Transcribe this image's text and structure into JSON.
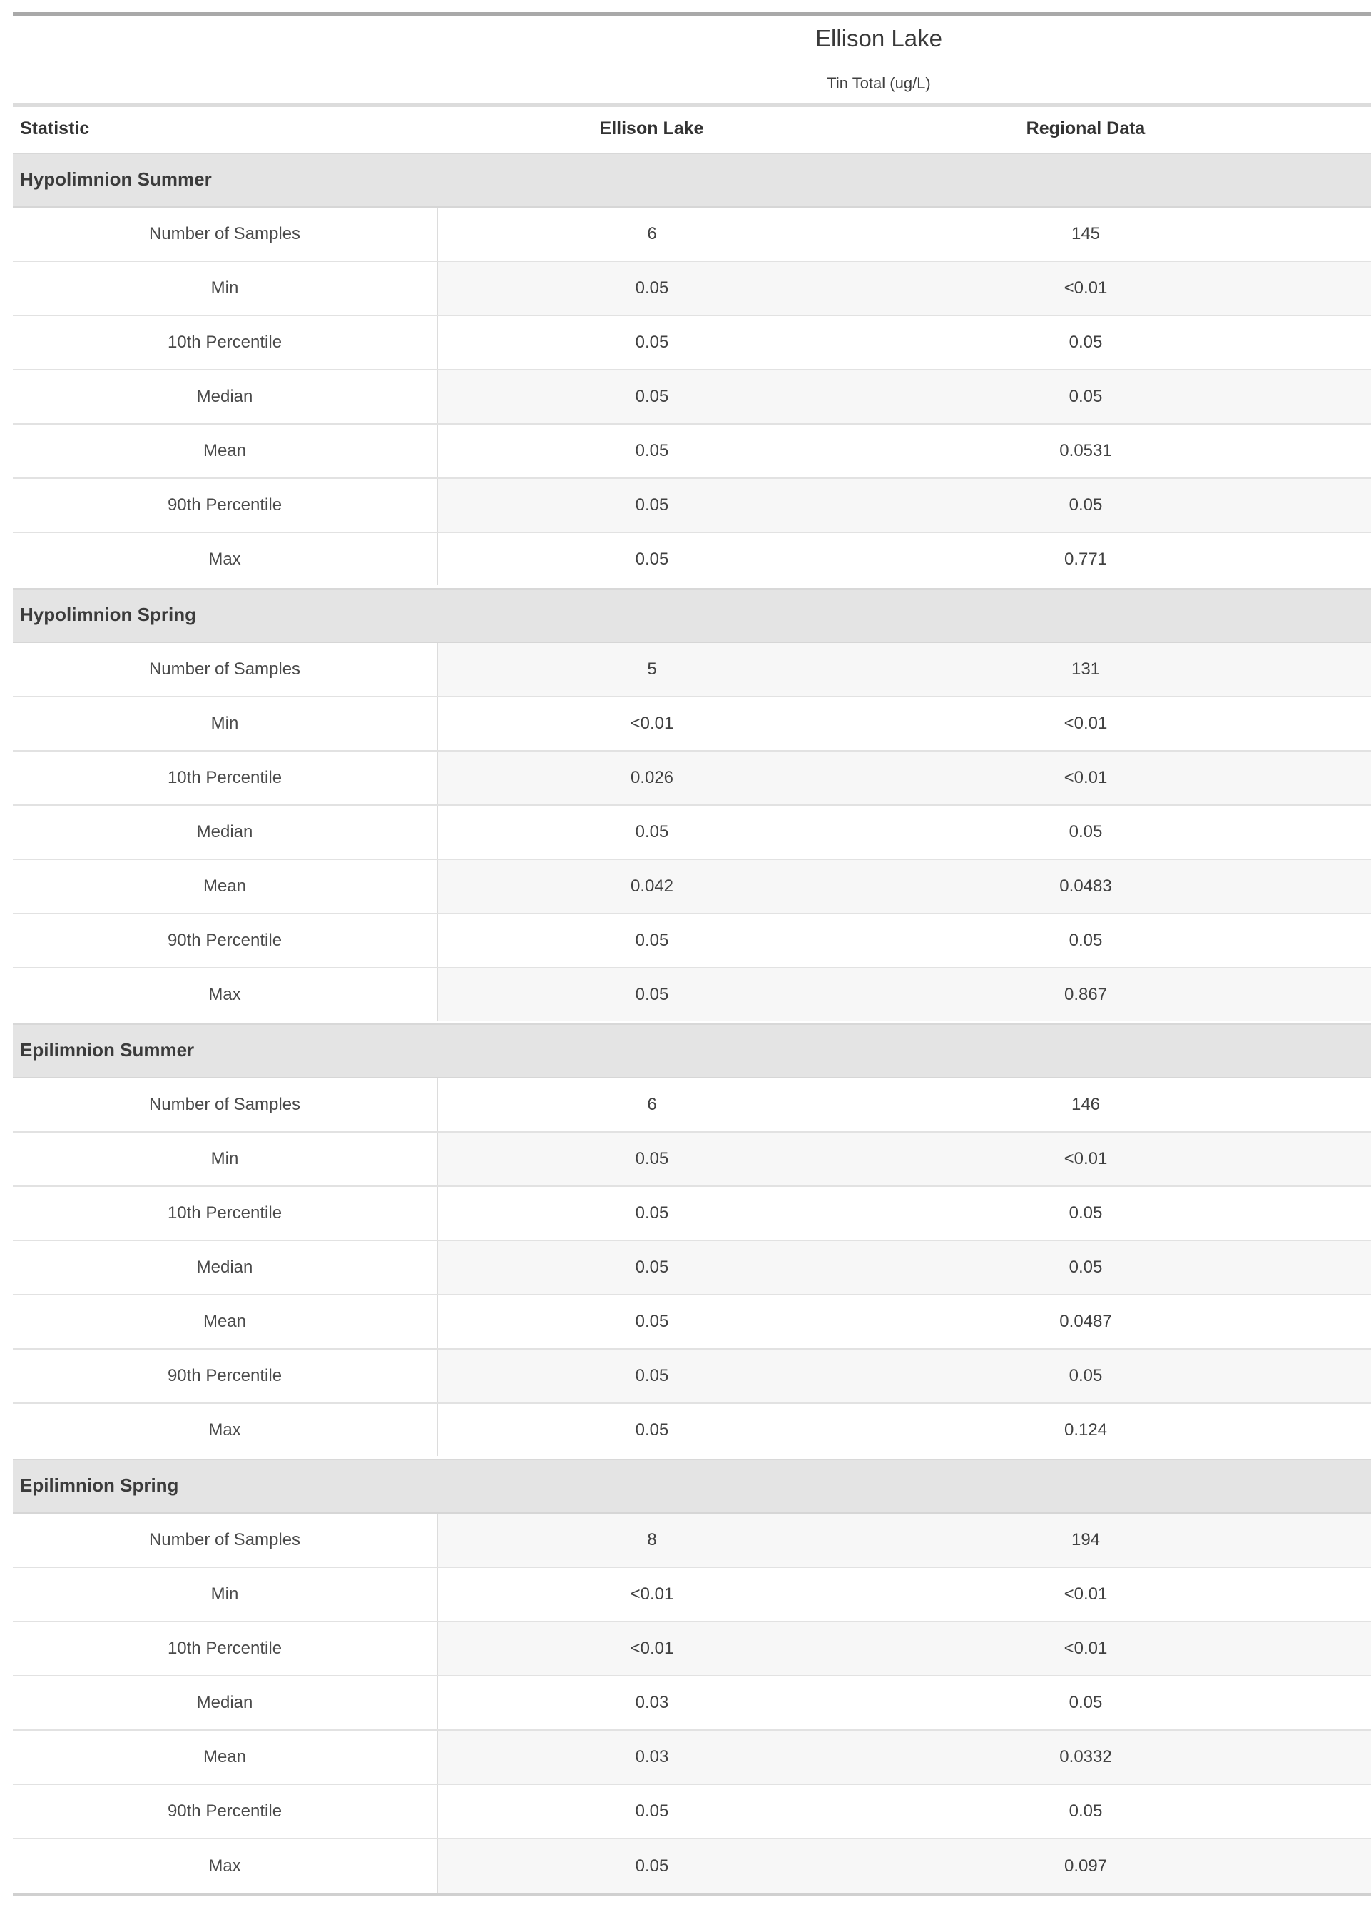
{
  "header": {
    "title": "Ellison Lake",
    "subtitle": "Tin Total (ug/L)"
  },
  "table": {
    "columns": [
      "Statistic",
      "Ellison Lake",
      "Regional Data"
    ],
    "sections": [
      {
        "label": "Hypolimnion Summer",
        "rows": [
          [
            "Number of Samples",
            "6",
            "145"
          ],
          [
            "Min",
            "0.05",
            "<0.01"
          ],
          [
            "10th Percentile",
            "0.05",
            "0.05"
          ],
          [
            "Median",
            "0.05",
            "0.05"
          ],
          [
            "Mean",
            "0.05",
            "0.0531"
          ],
          [
            "90th Percentile",
            "0.05",
            "0.05"
          ],
          [
            "Max",
            "0.05",
            "0.771"
          ]
        ]
      },
      {
        "label": "Hypolimnion Spring",
        "rows": [
          [
            "Number of Samples",
            "5",
            "131"
          ],
          [
            "Min",
            "<0.01",
            "<0.01"
          ],
          [
            "10th Percentile",
            "0.026",
            "<0.01"
          ],
          [
            "Median",
            "0.05",
            "0.05"
          ],
          [
            "Mean",
            "0.042",
            "0.0483"
          ],
          [
            "90th Percentile",
            "0.05",
            "0.05"
          ],
          [
            "Max",
            "0.05",
            "0.867"
          ]
        ]
      },
      {
        "label": "Epilimnion Summer",
        "rows": [
          [
            "Number of Samples",
            "6",
            "146"
          ],
          [
            "Min",
            "0.05",
            "<0.01"
          ],
          [
            "10th Percentile",
            "0.05",
            "0.05"
          ],
          [
            "Median",
            "0.05",
            "0.05"
          ],
          [
            "Mean",
            "0.05",
            "0.0487"
          ],
          [
            "90th Percentile",
            "0.05",
            "0.05"
          ],
          [
            "Max",
            "0.05",
            "0.124"
          ]
        ]
      },
      {
        "label": "Epilimnion Spring",
        "rows": [
          [
            "Number of Samples",
            "8",
            "194"
          ],
          [
            "Min",
            "<0.01",
            "<0.01"
          ],
          [
            "10th Percentile",
            "<0.01",
            "<0.01"
          ],
          [
            "Median",
            "0.03",
            "0.05"
          ],
          [
            "Mean",
            "0.03",
            "0.0332"
          ],
          [
            "90th Percentile",
            "0.05",
            "0.05"
          ],
          [
            "Max",
            "0.05",
            "0.097"
          ]
        ]
      }
    ]
  },
  "colors": {
    "top_bar": "#a9a9a9",
    "title_rule": "#dcdcdc",
    "section_header_bg": "#e4e4e4",
    "stripe_bg": "#f7f7f7",
    "row_border": "#e2e2e2",
    "bottom_bar": "#d0d0d0",
    "text": "#414141"
  }
}
